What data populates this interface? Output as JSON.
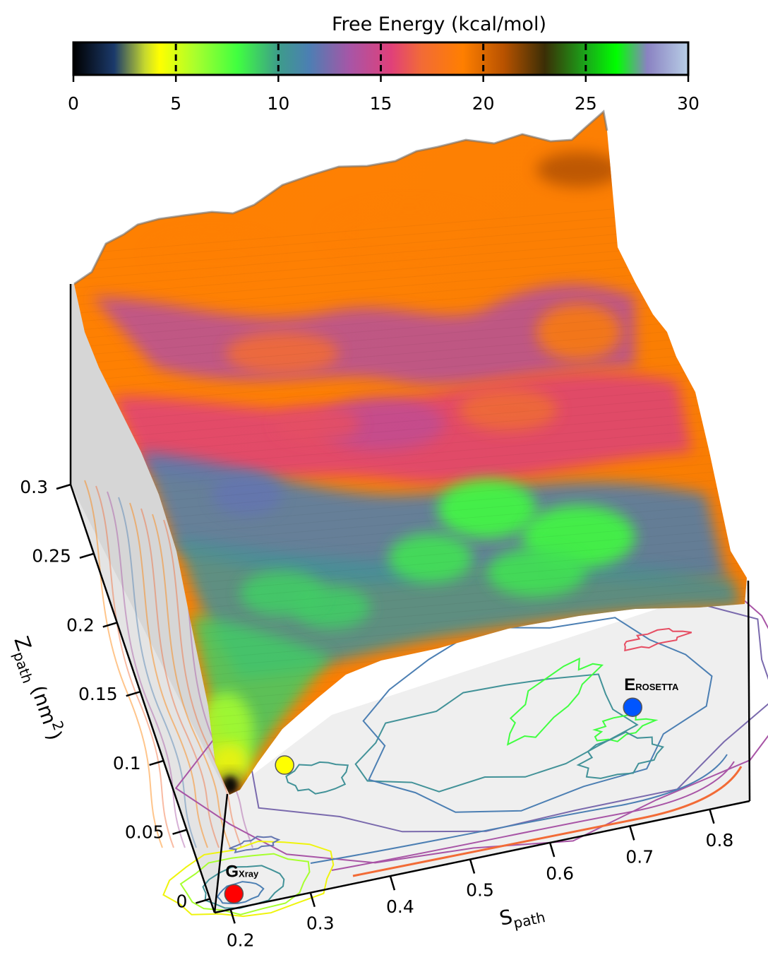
{
  "chart_data": {
    "type": "surface",
    "title": "Free Energy (kcal/mol)",
    "colorbar": {
      "ticks": [
        "0",
        "5",
        "10",
        "15",
        "20",
        "25",
        "30"
      ],
      "range": [
        0,
        30
      ],
      "colormap": [
        {
          "v": 0,
          "c": "#000000"
        },
        {
          "v": 2,
          "c": "#1b3a6b"
        },
        {
          "v": 3.5,
          "c": "#c7d92e"
        },
        {
          "v": 4.2,
          "c": "#ffff00"
        },
        {
          "v": 6,
          "c": "#a6ff2e"
        },
        {
          "v": 8,
          "c": "#40ff40"
        },
        {
          "v": 10,
          "c": "#3d9c8a"
        },
        {
          "v": 11.5,
          "c": "#4c7fb3"
        },
        {
          "v": 13.5,
          "c": "#a855a6"
        },
        {
          "v": 15.5,
          "c": "#e0407a"
        },
        {
          "v": 17,
          "c": "#f26b36"
        },
        {
          "v": 19,
          "c": "#ff7f00"
        },
        {
          "v": 21,
          "c": "#b85200"
        },
        {
          "v": 23,
          "c": "#3b2e06"
        },
        {
          "v": 25,
          "c": "#1aa61a"
        },
        {
          "v": 26.5,
          "c": "#00ff00"
        },
        {
          "v": 28,
          "c": "#8a82c2"
        },
        {
          "v": 30,
          "c": "#b8cee6"
        }
      ]
    },
    "xlabel": "S",
    "xlabel_sub": "path",
    "ylabel": "Z",
    "ylabel_sub": "path",
    "ylabel_unit": "(nm",
    "ylabel_unit_sup": "2",
    "ylabel_unit_close": ")",
    "x_ticks": [
      "0.2",
      "0.3",
      "0.4",
      "0.5",
      "0.6",
      "0.7",
      "0.8"
    ],
    "x_tick_values": [
      0.2,
      0.3,
      0.4,
      0.5,
      0.6,
      0.7,
      0.8
    ],
    "xlim": [
      0.18,
      0.85
    ],
    "y_ticks": [
      "0",
      "0.05",
      "0.1",
      "0.15",
      "0.2",
      "0.25",
      "0.3"
    ],
    "y_tick_values": [
      0,
      0.05,
      0.1,
      0.15,
      0.2,
      0.25,
      0.3
    ],
    "ylim": [
      -0.01,
      0.3
    ],
    "markers": [
      {
        "label": "G",
        "sub": "Xray",
        "s": 0.21,
        "z": 0.0,
        "color": "#ff0000"
      },
      {
        "label": "",
        "sub": "",
        "s": 0.32,
        "z": 0.08,
        "color": "#ffff00"
      },
      {
        "label": "E",
        "sub": "ROSETTA",
        "s": 0.75,
        "z": 0.07,
        "color": "#0055ff"
      }
    ]
  }
}
